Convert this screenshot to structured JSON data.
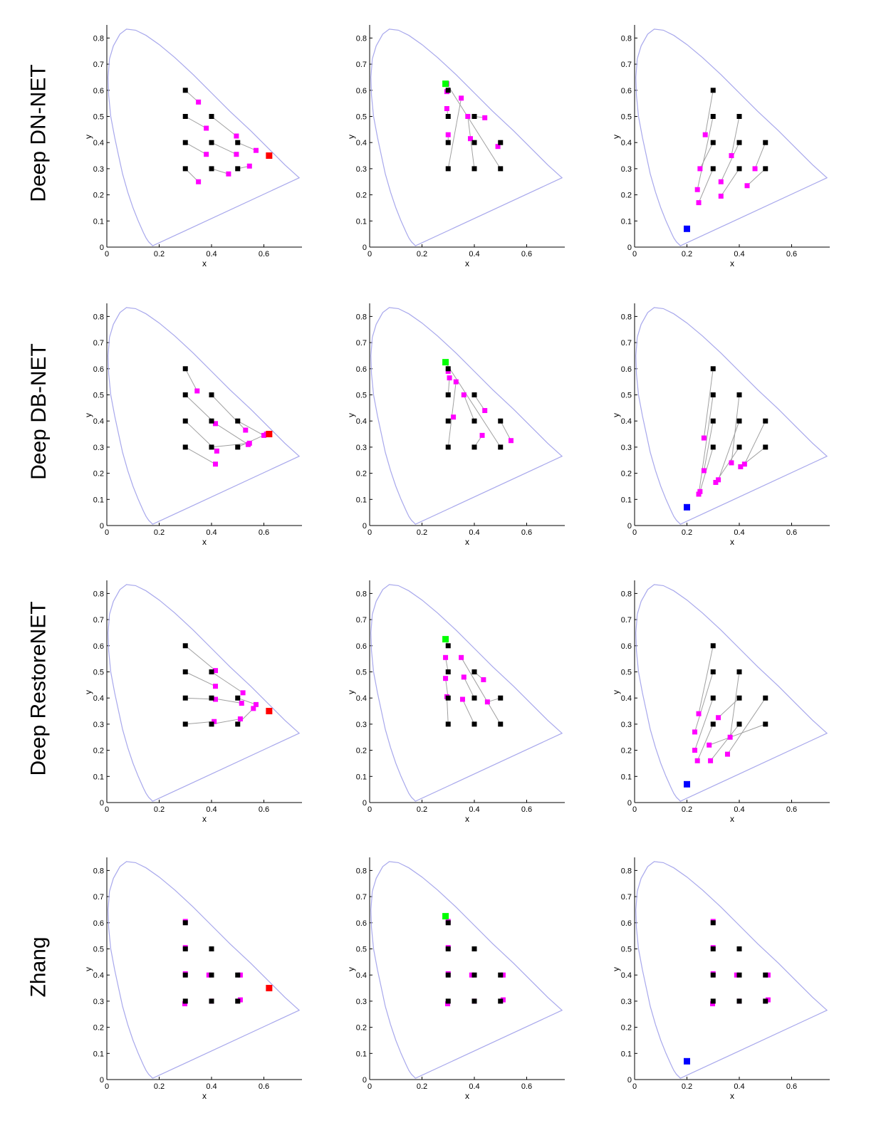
{
  "row_labels": [
    "Deep DN-NET",
    "Deep DB-NET",
    "Deep RestoreNET",
    "Zhang"
  ],
  "colors": {
    "locus": "#a8a8ec",
    "link": "#a0a0a0",
    "reference": "#000000",
    "estimate": "#ff00ff",
    "illuminant_red": "#ff0000",
    "illuminant_green": "#00ff00",
    "illuminant_blue": "#0000ff"
  },
  "chart_data": {
    "type": "scatter",
    "xlabel": "x",
    "ylabel": "y",
    "xlim": [
      0,
      0.74
    ],
    "ylim": [
      0,
      0.84
    ],
    "xticks": [
      0,
      0.2,
      0.4,
      0.6
    ],
    "yticks": [
      0,
      0.1,
      0.2,
      0.3,
      0.4,
      0.5,
      0.6,
      0.7,
      0.8
    ],
    "grid": false,
    "spectral_locus": [
      [
        0.175,
        0.005
      ],
      [
        0.17,
        0.01
      ],
      [
        0.16,
        0.02
      ],
      [
        0.15,
        0.035
      ],
      [
        0.14,
        0.055
      ],
      [
        0.12,
        0.1
      ],
      [
        0.1,
        0.15
      ],
      [
        0.08,
        0.21
      ],
      [
        0.06,
        0.28
      ],
      [
        0.045,
        0.35
      ],
      [
        0.03,
        0.42
      ],
      [
        0.015,
        0.5
      ],
      [
        0.007,
        0.58
      ],
      [
        0.005,
        0.65
      ],
      [
        0.01,
        0.72
      ],
      [
        0.025,
        0.77
      ],
      [
        0.05,
        0.815
      ],
      [
        0.075,
        0.834
      ],
      [
        0.11,
        0.83
      ],
      [
        0.15,
        0.81
      ],
      [
        0.2,
        0.775
      ],
      [
        0.26,
        0.725
      ],
      [
        0.33,
        0.66
      ],
      [
        0.4,
        0.59
      ],
      [
        0.47,
        0.52
      ],
      [
        0.55,
        0.445
      ],
      [
        0.62,
        0.375
      ],
      [
        0.68,
        0.315
      ],
      [
        0.735,
        0.265
      ]
    ],
    "columns": [
      {
        "illuminant": [
          0.62,
          0.35
        ],
        "illuminant_color": "#ff0000",
        "reference": [
          [
            0.3,
            0.6
          ],
          [
            0.3,
            0.5
          ],
          [
            0.4,
            0.5
          ],
          [
            0.3,
            0.4
          ],
          [
            0.4,
            0.4
          ],
          [
            0.5,
            0.4
          ],
          [
            0.3,
            0.3
          ],
          [
            0.4,
            0.3
          ],
          [
            0.5,
            0.3
          ]
        ],
        "rows": [
          [
            [
              0.35,
              0.555
            ],
            [
              0.38,
              0.455
            ],
            [
              0.495,
              0.425
            ],
            [
              0.38,
              0.355
            ],
            [
              0.495,
              0.355
            ],
            [
              0.57,
              0.37
            ],
            [
              0.35,
              0.25
            ],
            [
              0.465,
              0.28
            ],
            [
              0.545,
              0.31
            ]
          ],
          [
            [
              0.345,
              0.515
            ],
            [
              0.415,
              0.39
            ],
            [
              0.53,
              0.365
            ],
            [
              0.42,
              0.285
            ],
            [
              0.54,
              0.31
            ],
            [
              0.6,
              0.345
            ],
            [
              0.415,
              0.235
            ],
            [
              0.545,
              0.315
            ],
            [
              0.61,
              0.35
            ]
          ],
          [
            [
              0.415,
              0.505
            ],
            [
              0.415,
              0.445
            ],
            [
              0.52,
              0.42
            ],
            [
              0.415,
              0.395
            ],
            [
              0.515,
              0.38
            ],
            [
              0.57,
              0.375
            ],
            [
              0.41,
              0.31
            ],
            [
              0.51,
              0.32
            ],
            [
              0.56,
              0.36
            ]
          ],
          [
            [
              0.3,
              0.605
            ],
            [
              0.3,
              0.505
            ],
            [
              0.4,
              0.5
            ],
            [
              0.3,
              0.405
            ],
            [
              0.39,
              0.4
            ],
            [
              0.51,
              0.4
            ],
            [
              0.298,
              0.29
            ],
            [
              0.4,
              0.3
            ],
            [
              0.51,
              0.305
            ]
          ]
        ]
      },
      {
        "illuminant": [
          0.29,
          0.625
        ],
        "illuminant_color": "#00ff00",
        "reference": [
          [
            0.3,
            0.6
          ],
          [
            0.3,
            0.5
          ],
          [
            0.4,
            0.5
          ],
          [
            0.3,
            0.4
          ],
          [
            0.4,
            0.4
          ],
          [
            0.5,
            0.4
          ],
          [
            0.3,
            0.3
          ],
          [
            0.4,
            0.3
          ],
          [
            0.5,
            0.3
          ]
        ],
        "rows": [
          [
            [
              0.295,
              0.595
            ],
            [
              0.295,
              0.53
            ],
            [
              0.44,
              0.495
            ],
            [
              0.3,
              0.43
            ],
            [
              0.385,
              0.415
            ],
            [
              0.49,
              0.385
            ],
            [
              0.35,
              0.57
            ],
            [
              0.375,
              0.5
            ],
            [
              0.295,
              0.625
            ]
          ],
          [
            [
              0.3,
              0.59
            ],
            [
              0.305,
              0.565
            ],
            [
              0.44,
              0.44
            ],
            [
              0.32,
              0.415
            ],
            [
              0.36,
              0.5
            ],
            [
              0.54,
              0.325
            ],
            [
              0.33,
              0.55
            ],
            [
              0.43,
              0.345
            ],
            [
              0.29,
              0.625
            ]
          ],
          [
            [
              0.29,
              0.625
            ],
            [
              0.29,
              0.555
            ],
            [
              0.435,
              0.47
            ],
            [
              0.29,
              0.475
            ],
            [
              0.36,
              0.48
            ],
            [
              0.45,
              0.385
            ],
            [
              0.295,
              0.405
            ],
            [
              0.355,
              0.395
            ],
            [
              0.35,
              0.555
            ]
          ],
          [
            [
              0.3,
              0.605
            ],
            [
              0.3,
              0.505
            ],
            [
              0.4,
              0.5
            ],
            [
              0.3,
              0.405
            ],
            [
              0.39,
              0.4
            ],
            [
              0.51,
              0.4
            ],
            [
              0.298,
              0.29
            ],
            [
              0.4,
              0.3
            ],
            [
              0.51,
              0.305
            ]
          ]
        ]
      },
      {
        "illuminant": [
          0.2,
          0.07
        ],
        "illuminant_color": "#0000ff",
        "reference": [
          [
            0.3,
            0.6
          ],
          [
            0.3,
            0.5
          ],
          [
            0.4,
            0.5
          ],
          [
            0.3,
            0.4
          ],
          [
            0.4,
            0.4
          ],
          [
            0.5,
            0.4
          ],
          [
            0.3,
            0.3
          ],
          [
            0.4,
            0.3
          ],
          [
            0.5,
            0.3
          ]
        ],
        "rows": [
          [
            [
              0.27,
              0.43
            ],
            [
              0.24,
              0.22
            ],
            [
              0.37,
              0.35
            ],
            [
              0.25,
              0.3
            ],
            [
              0.33,
              0.25
            ],
            [
              0.46,
              0.3
            ],
            [
              0.245,
              0.17
            ],
            [
              0.33,
              0.195
            ],
            [
              0.43,
              0.235
            ]
          ],
          [
            [
              0.265,
              0.335
            ],
            [
              0.245,
              0.12
            ],
            [
              0.37,
              0.24
            ],
            [
              0.265,
              0.21
            ],
            [
              0.32,
              0.175
            ],
            [
              0.42,
              0.235
            ],
            [
              0.25,
              0.13
            ],
            [
              0.31,
              0.165
            ],
            [
              0.405,
              0.225
            ]
          ],
          [
            [
              0.245,
              0.34
            ],
            [
              0.23,
              0.27
            ],
            [
              0.365,
              0.25
            ],
            [
              0.23,
              0.2
            ],
            [
              0.32,
              0.325
            ],
            [
              0.355,
              0.185
            ],
            [
              0.24,
              0.16
            ],
            [
              0.29,
              0.16
            ],
            [
              0.285,
              0.22
            ]
          ],
          [
            [
              0.3,
              0.605
            ],
            [
              0.3,
              0.505
            ],
            [
              0.4,
              0.5
            ],
            [
              0.3,
              0.405
            ],
            [
              0.39,
              0.4
            ],
            [
              0.51,
              0.4
            ],
            [
              0.298,
              0.29
            ],
            [
              0.4,
              0.3
            ],
            [
              0.51,
              0.305
            ]
          ]
        ]
      }
    ]
  }
}
